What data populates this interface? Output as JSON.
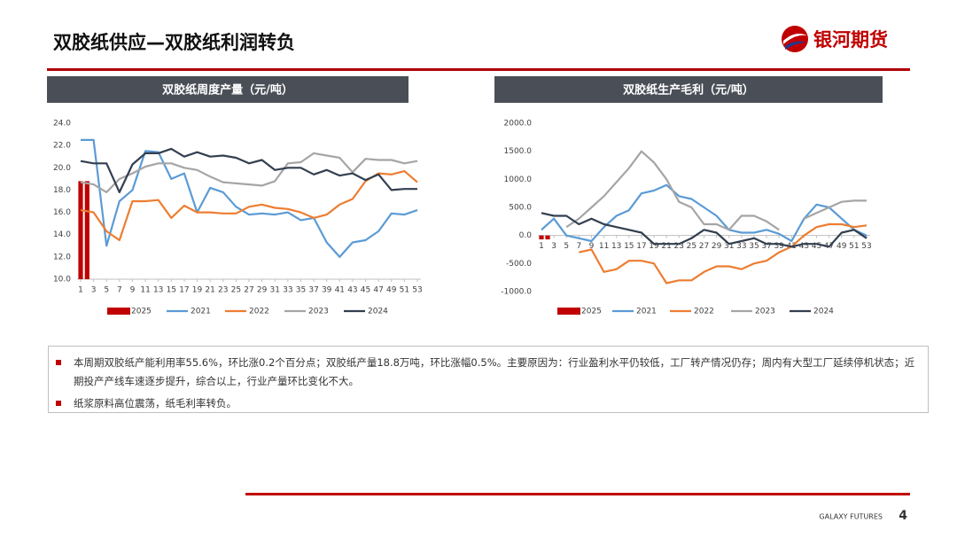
{
  "header": {
    "title": "双胶纸供应—双胶纸利润转负",
    "logo": "银河期货"
  },
  "chart_data": [
    {
      "type": "line",
      "title": "双胶纸周度产量（元/吨）",
      "x": [
        1,
        3,
        5,
        7,
        9,
        11,
        13,
        15,
        17,
        19,
        21,
        23,
        25,
        27,
        29,
        31,
        33,
        35,
        37,
        39,
        41,
        43,
        45,
        47,
        49,
        51,
        53
      ],
      "xlim": [
        1,
        53
      ],
      "xticks": [
        1,
        3,
        5,
        7,
        9,
        11,
        13,
        15,
        17,
        19,
        21,
        23,
        25,
        27,
        29,
        31,
        33,
        35,
        37,
        39,
        41,
        43,
        45,
        47,
        49,
        51,
        53
      ],
      "ylim": [
        10,
        24
      ],
      "yticks": [
        {
          "value": 10,
          "label": "10.0"
        },
        {
          "value": 12,
          "label": "12.0"
        },
        {
          "value": 14,
          "label": "14.0"
        },
        {
          "value": 16,
          "label": "16.0"
        },
        {
          "value": 18,
          "label": "18.0"
        },
        {
          "value": 20,
          "label": "20.0"
        },
        {
          "value": 22,
          "label": "22.0"
        },
        {
          "value": 24,
          "label": "24.0"
        }
      ],
      "series": [
        {
          "name": "2025",
          "type": "bar",
          "color": "#c00000",
          "x": [
            1,
            2
          ],
          "values": [
            18.8,
            18.8
          ]
        },
        {
          "name": "2021",
          "color": "#5b9bd5",
          "values": [
            22.5,
            22.5,
            13,
            17,
            18,
            21.5,
            21.4,
            19,
            19.5,
            16,
            18.2,
            17.8,
            16.5,
            15.8,
            15.9,
            15.8,
            16,
            15.3,
            15.5,
            13.3,
            12,
            13.3,
            13.5,
            14.3,
            15.9,
            15.8,
            16.2
          ]
        },
        {
          "name": "2022",
          "color": "#ed7d31",
          "values": [
            16.2,
            16,
            14.3,
            13.5,
            17,
            17,
            17.1,
            15.5,
            16.6,
            16,
            16,
            15.9,
            15.9,
            16.5,
            16.7,
            16.4,
            16.3,
            16,
            15.5,
            15.8,
            16.7,
            17.2,
            18.8,
            19.5,
            19.4,
            19.7,
            18.7
          ]
        },
        {
          "name": "2023",
          "color": "#a5a5a5",
          "values": [
            18.7,
            18.5,
            17.8,
            19,
            19.5,
            20.1,
            20.4,
            20.4,
            20,
            19.8,
            19.2,
            18.7,
            18.6,
            18.5,
            18.4,
            18.8,
            20.4,
            20.5,
            21.3,
            21.1,
            20.9,
            19.6,
            20.8,
            20.7,
            20.7,
            20.4,
            20.6
          ]
        },
        {
          "name": "2024",
          "color": "#333f50",
          "values": [
            20.6,
            20.4,
            20.4,
            17.8,
            20.3,
            21.3,
            21.3,
            21.7,
            21,
            21.4,
            21,
            21.1,
            20.9,
            20.4,
            20.7,
            19.8,
            20,
            20,
            19.4,
            19.8,
            19.3,
            19.5,
            18.9,
            19.4,
            18,
            18.1,
            18.1
          ]
        }
      ]
    },
    {
      "type": "line",
      "title": "双胶纸生产毛利（元/吨）",
      "x": [
        1,
        3,
        5,
        7,
        9,
        11,
        13,
        15,
        17,
        19,
        21,
        23,
        25,
        27,
        29,
        31,
        33,
        35,
        37,
        39,
        41,
        43,
        45,
        47,
        49,
        51,
        53
      ],
      "xlim": [
        1,
        53
      ],
      "xticks": [
        1,
        3,
        5,
        7,
        9,
        11,
        13,
        15,
        17,
        19,
        21,
        23,
        25,
        27,
        29,
        31,
        33,
        35,
        37,
        39,
        41,
        43,
        45,
        47,
        49,
        51,
        53
      ],
      "ylim": [
        -1000,
        2000
      ],
      "yticks": [
        {
          "value": -1000,
          "label": "-1000.0"
        },
        {
          "value": -500,
          "label": "-500.0"
        },
        {
          "value": 0,
          "label": "0.0"
        },
        {
          "value": 500,
          "label": "500.0"
        },
        {
          "value": 1000,
          "label": "1000.0"
        },
        {
          "value": 1500,
          "label": "1500.0"
        },
        {
          "value": 2000,
          "label": "2000.0"
        }
      ],
      "series": [
        {
          "name": "2025",
          "type": "bar",
          "color": "#c00000",
          "x": [
            1,
            2
          ],
          "values": [
            -70,
            -70
          ]
        },
        {
          "name": "2021",
          "color": "#5b9bd5",
          "values": [
            100,
            300,
            0,
            -50,
            -100,
            150,
            350,
            450,
            750,
            800,
            900,
            700,
            650,
            500,
            350,
            100,
            50,
            50,
            100,
            30,
            -100,
            300,
            550,
            500,
            300,
            100,
            0
          ]
        },
        {
          "name": "2022",
          "color": "#ed7d31",
          "values": [
            null,
            null,
            null,
            -300,
            -250,
            -650,
            -600,
            -450,
            -450,
            -500,
            -850,
            -800,
            -800,
            -650,
            -550,
            -550,
            -600,
            -500,
            -450,
            -300,
            -200,
            0,
            150,
            200,
            200,
            150,
            180
          ]
        },
        {
          "name": "2023",
          "color": "#a5a5a5",
          "values": [
            null,
            null,
            150,
            300,
            500,
            700,
            950,
            1200,
            1500,
            1300,
            1000,
            600,
            500,
            200,
            200,
            100,
            350,
            350,
            250,
            100,
            null,
            300,
            400,
            500,
            600,
            620,
            620
          ]
        },
        {
          "name": "2024",
          "color": "#333f50",
          "values": [
            400,
            350,
            350,
            200,
            300,
            200,
            150,
            100,
            50,
            -150,
            -150,
            -150,
            -50,
            100,
            50,
            -150,
            -100,
            -50,
            -150,
            -150,
            -200,
            -150,
            -150,
            -200,
            50,
            100,
            -50
          ]
        }
      ]
    }
  ],
  "notes": [
    "本周期双胶纸产能利用率55.6%，环比涨0.2个百分点；双胶纸产量18.8万吨，环比涨幅0.5%。主要原因为：行业盈利水平仍较低，工厂转产情况仍存；周内有大型工厂延续停机状态；近期投产产线车速逐步提升，综合以上，行业产量环比变化不大。",
    "纸浆原料高位震荡，纸毛利率转负。"
  ],
  "footer": {
    "brand": "GALAXY FUTURES",
    "page": 4
  }
}
